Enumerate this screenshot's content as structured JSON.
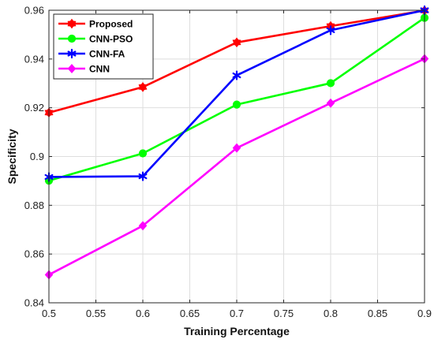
{
  "chart_data": {
    "type": "line",
    "title": "",
    "xlabel": "Training Percentage",
    "ylabel": "Specificity",
    "x": [
      0.5,
      0.6,
      0.7,
      0.8,
      0.9
    ],
    "xlim": [
      0.5,
      0.9
    ],
    "ylim": [
      0.84,
      0.96
    ],
    "xticks": [
      "0.5",
      "0.55",
      "0.6",
      "0.65",
      "0.7",
      "0.75",
      "0.8",
      "0.85",
      "0.9"
    ],
    "yticks": [
      "0.84",
      "0.86",
      "0.88",
      "0.9",
      "0.92",
      "0.94",
      "0.96"
    ],
    "grid": true,
    "legend_position": "top-left",
    "series": [
      {
        "name": "Proposed",
        "color": "#ff0000",
        "marker": "hexagram",
        "values": [
          0.918,
          0.9285,
          0.9468,
          0.9535,
          0.9599
        ]
      },
      {
        "name": "CNN-PSO",
        "color": "#00ff00",
        "marker": "circle",
        "values": [
          0.8901,
          0.9013,
          0.9213,
          0.9301,
          0.9569
        ]
      },
      {
        "name": "CNN-FA",
        "color": "#0000ff",
        "marker": "asterisk",
        "values": [
          0.8916,
          0.8919,
          0.9333,
          0.9518,
          0.96
        ]
      },
      {
        "name": "CNN",
        "color": "#ff00ff",
        "marker": "diamond",
        "values": [
          0.8515,
          0.8716,
          0.9035,
          0.9219,
          0.9401
        ]
      }
    ]
  }
}
